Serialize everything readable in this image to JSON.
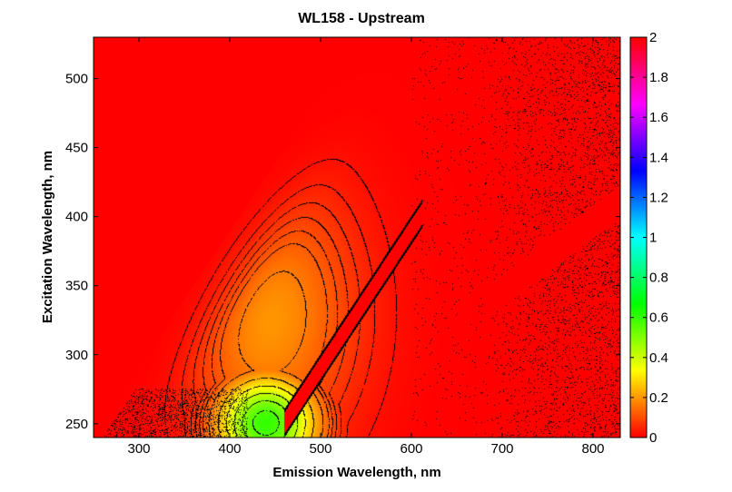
{
  "chart_data": {
    "type": "heatmap",
    "title": "WL158 - Upstream",
    "xlabel": "Emission Wavelength, nm",
    "ylabel": "Excitation Wavelength, nm",
    "xlim": [
      250,
      830
    ],
    "ylim": [
      240,
      530
    ],
    "x_ticks": [
      300,
      400,
      500,
      600,
      700,
      800
    ],
    "y_ticks": [
      250,
      300,
      350,
      400,
      450,
      500
    ],
    "colorbar": {
      "range": [
        0,
        2
      ],
      "ticks": [
        0,
        0.2,
        0.4,
        0.6,
        0.8,
        1,
        1.2,
        1.4,
        1.6,
        1.8,
        2
      ],
      "colormap": "hsv"
    },
    "peak": {
      "emission_nm": 440,
      "excitation_nm": 250,
      "value": 0.6
    },
    "secondary_peak": {
      "emission_nm": 440,
      "excitation_nm": 330,
      "value": 0.2
    },
    "background_value": 0,
    "scatter_bands": [
      {
        "label": "",
        "slope": 1,
        "offset_nm": 0
      },
      {
        "label": "",
        "slope": 0.5,
        "offset_nm": 0
      }
    ],
    "contour_levels": [
      0.02,
      0.04,
      0.06,
      0.08,
      0.1,
      0.12,
      0.16,
      0.24,
      0.32,
      0.4,
      0.48,
      0.56
    ],
    "colors": {
      "frame": "#000000",
      "background": "#ffffff"
    }
  }
}
